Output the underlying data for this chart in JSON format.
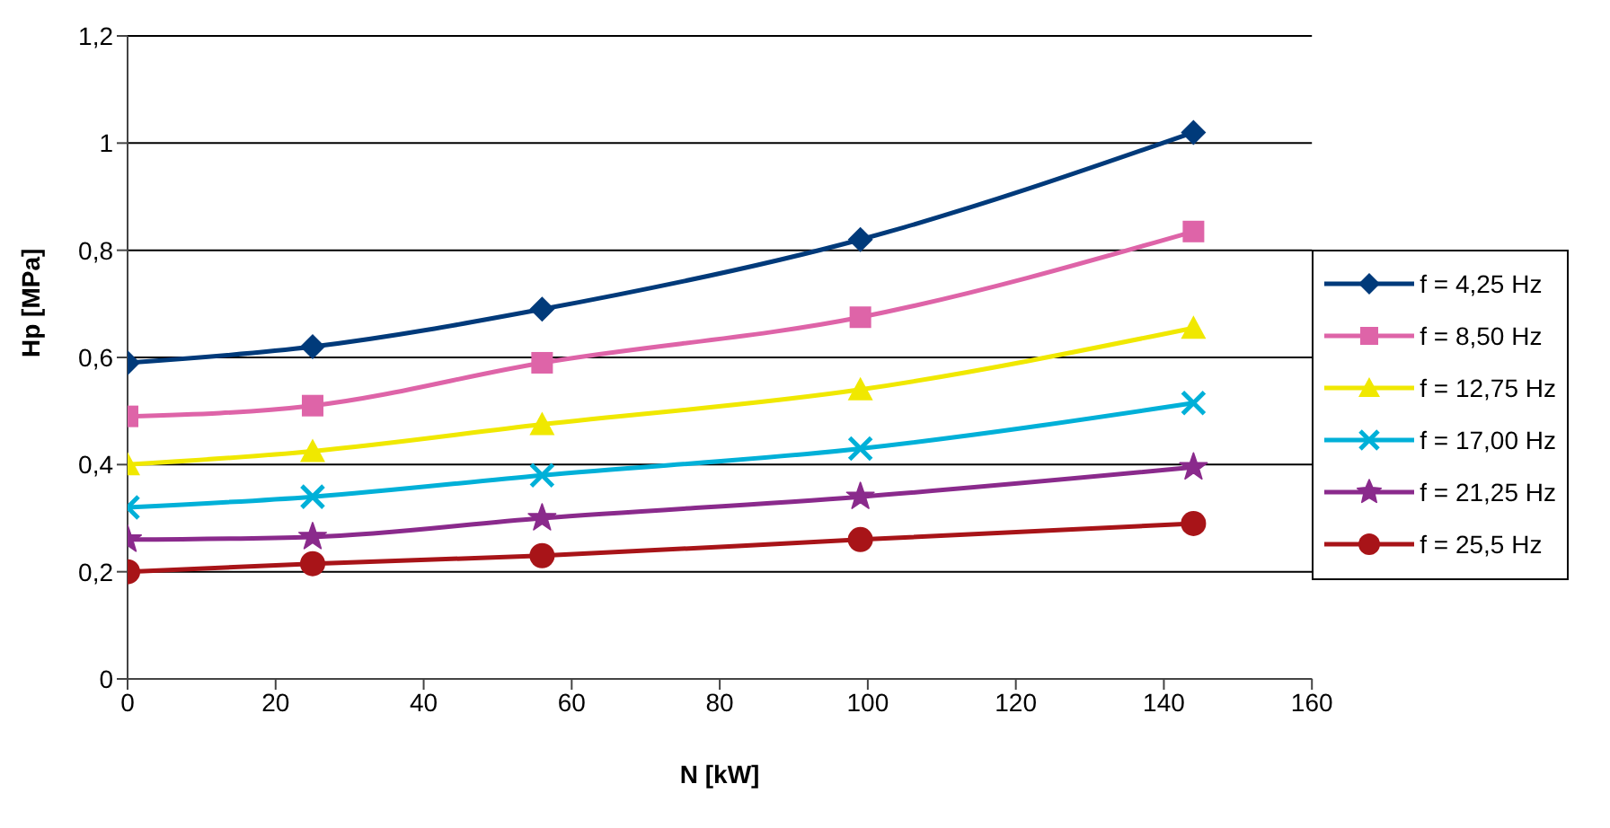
{
  "chart_data": {
    "type": "line",
    "xlabel": "N [kW]",
    "ylabel": "Hp [MPa]",
    "x": [
      0,
      25,
      56,
      99,
      144
    ],
    "series": [
      {
        "name": "f = 4,25 Hz",
        "color": "#003a7a",
        "marker": "diamond",
        "values": [
          0.59,
          0.62,
          0.69,
          0.82,
          1.02
        ]
      },
      {
        "name": "f = 8,50 Hz",
        "color": "#de64a8",
        "marker": "square",
        "values": [
          0.49,
          0.51,
          0.59,
          0.675,
          0.835
        ]
      },
      {
        "name": "f = 12,75 Hz",
        "color": "#f0e800",
        "marker": "triangle",
        "values": [
          0.4,
          0.425,
          0.475,
          0.54,
          0.655
        ]
      },
      {
        "name": "f = 17,00 Hz",
        "color": "#00b0d8",
        "marker": "cross",
        "values": [
          0.32,
          0.34,
          0.38,
          0.43,
          0.515
        ]
      },
      {
        "name": "f = 21,25 Hz",
        "color": "#8a2a8c",
        "marker": "star",
        "values": [
          0.26,
          0.265,
          0.3,
          0.34,
          0.395
        ]
      },
      {
        "name": "f = 25,5 Hz",
        "color": "#a81418",
        "marker": "circle",
        "values": [
          0.2,
          0.215,
          0.23,
          0.26,
          0.29
        ]
      }
    ],
    "xlim": [
      0,
      160
    ],
    "xticks": [
      0,
      20,
      40,
      60,
      80,
      100,
      120,
      140,
      160
    ],
    "ylim": [
      0,
      1.2
    ],
    "yticks": [
      0,
      {
        "value": 0.2,
        "label": "0,2"
      },
      {
        "value": 0.4,
        "label": "0,4"
      },
      {
        "value": 0.6,
        "label": "0,6"
      },
      {
        "value": 0.8,
        "label": "0,8"
      },
      1,
      {
        "value": 1.2,
        "label": "1,2"
      }
    ],
    "grid": "y",
    "legend": "right",
    "line_style": "solid"
  }
}
